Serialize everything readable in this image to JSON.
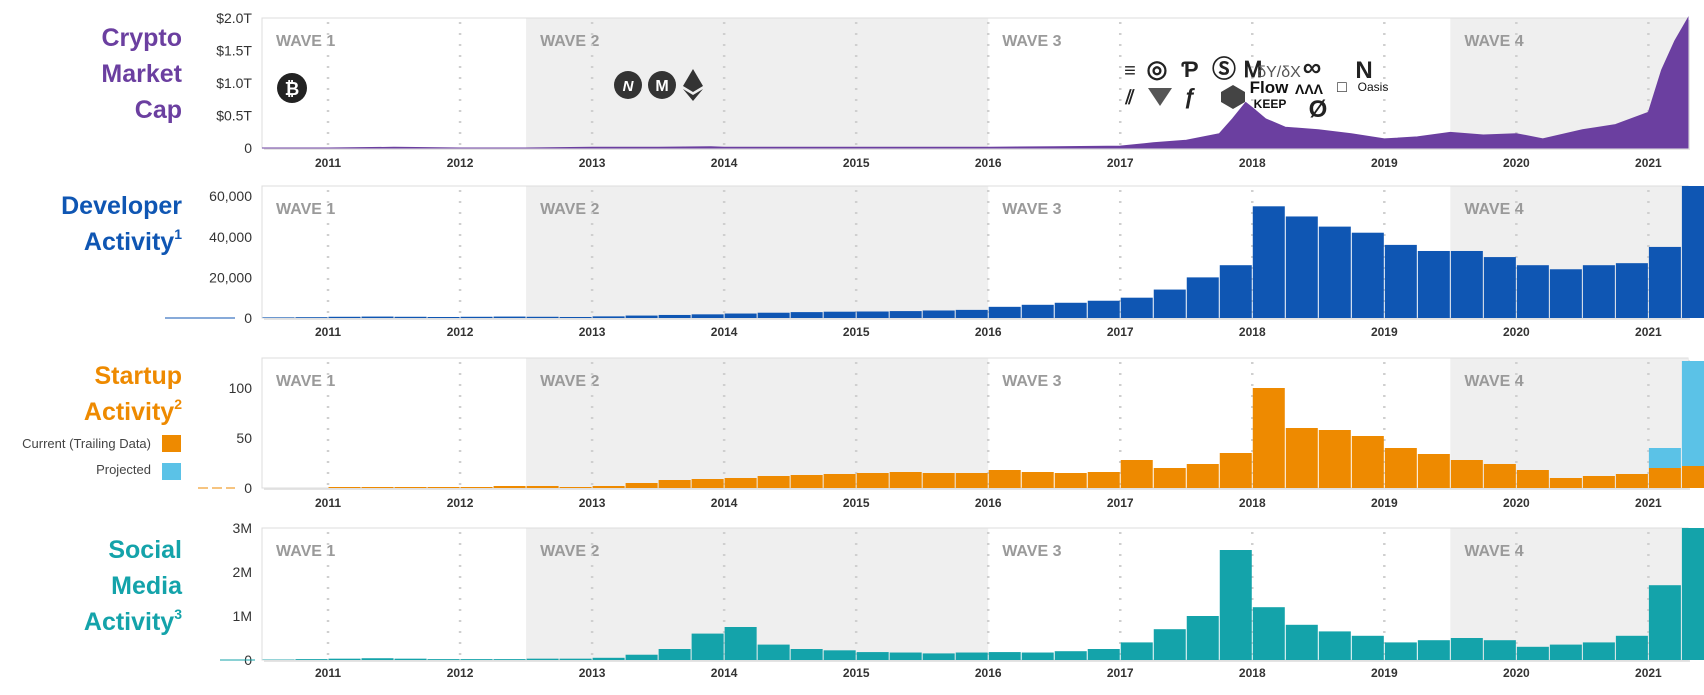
{
  "panels": [
    {
      "title_lines": [
        "Crypto",
        "Market",
        "Cap"
      ],
      "title_sup": "",
      "title_color": "#6b3fa0"
    },
    {
      "title_lines": [
        "Developer",
        "Activity"
      ],
      "title_sup": "1",
      "title_color": "#0f56b3"
    },
    {
      "title_lines": [
        "Startup",
        "Activity"
      ],
      "title_sup": "2",
      "title_color": "#ee8a00"
    },
    {
      "title_lines": [
        "Social",
        "Media",
        "Activity"
      ],
      "title_sup": "3",
      "title_color": "#14a3aa"
    }
  ],
  "legend": {
    "current_label": "Current (Trailing Data)",
    "current_color": "#ee8a00",
    "projected_label": "Projected",
    "projected_color": "#5bc2e7"
  },
  "waves": [
    {
      "label": "WAVE 1",
      "start": 2010.5,
      "end": 2012.5,
      "shaded": false
    },
    {
      "label": "WAVE 2",
      "start": 2012.5,
      "end": 2016.0,
      "shaded": true
    },
    {
      "label": "WAVE 3",
      "start": 2016.0,
      "end": 2019.5,
      "shaded": false
    },
    {
      "label": "WAVE 4",
      "start": 2019.5,
      "end": 2021.3,
      "shaded": true
    }
  ],
  "logos": {
    "wave1": [
      "bitcoin-logo"
    ],
    "wave2": [
      "nem-logo",
      "monero-logo",
      "ethereum-logo"
    ],
    "wave3": [
      "Flow",
      "KEEP",
      "Oasis",
      "δY/δX"
    ]
  },
  "chart_data": [
    {
      "type": "area",
      "title": "Crypto Market Cap",
      "color": "#6b3fa0",
      "x_ticks": [
        "2011",
        "2012",
        "2013",
        "2014",
        "2015",
        "2016",
        "2017",
        "2018",
        "2019",
        "2020",
        "2021"
      ],
      "y_ticks": [
        "0",
        "$0.5T",
        "$1.0T",
        "$1.5T",
        "$2.0T"
      ],
      "ylim": [
        0,
        2.0
      ],
      "unit": "trillions USD",
      "x": [
        2010.5,
        2011,
        2011.5,
        2012,
        2012.5,
        2013,
        2013.5,
        2013.9,
        2014,
        2014.5,
        2015,
        2015.5,
        2016,
        2016.5,
        2017,
        2017.25,
        2017.5,
        2017.75,
        2017.85,
        2017.95,
        2018.0,
        2018.1,
        2018.25,
        2018.5,
        2018.75,
        2019,
        2019.25,
        2019.5,
        2019.75,
        2020,
        2020.2,
        2020.5,
        2020.75,
        2021,
        2021.1,
        2021.2,
        2021.3
      ],
      "y": [
        0,
        0,
        0.01,
        0,
        0,
        0.01,
        0.01,
        0.02,
        0.01,
        0.01,
        0.01,
        0.01,
        0.01,
        0.02,
        0.03,
        0.08,
        0.12,
        0.22,
        0.45,
        0.7,
        0.62,
        0.45,
        0.32,
        0.28,
        0.22,
        0.14,
        0.17,
        0.24,
        0.2,
        0.22,
        0.14,
        0.28,
        0.36,
        0.55,
        1.2,
        1.65,
        2.0
      ]
    },
    {
      "type": "bar",
      "title": "Developer Activity",
      "color": "#0f56b3",
      "x_ticks": [
        "2011",
        "2012",
        "2013",
        "2014",
        "2015",
        "2016",
        "2017",
        "2018",
        "2019",
        "2020",
        "2021"
      ],
      "y_ticks": [
        "0",
        "20,000",
        "40,000",
        "60,000"
      ],
      "ylim": [
        0,
        65000
      ],
      "periods": [
        "2010-Q3",
        "2010-Q4",
        "2011-Q1",
        "2011-Q2",
        "2011-Q3",
        "2011-Q4",
        "2012-Q1",
        "2012-Q2",
        "2012-Q3",
        "2012-Q4",
        "2013-Q1",
        "2013-Q2",
        "2013-Q3",
        "2013-Q4",
        "2014-Q1",
        "2014-Q2",
        "2014-Q3",
        "2014-Q4",
        "2015-Q1",
        "2015-Q2",
        "2015-Q3",
        "2015-Q4",
        "2016-Q1",
        "2016-Q2",
        "2016-Q3",
        "2016-Q4",
        "2017-Q1",
        "2017-Q2",
        "2017-Q3",
        "2017-Q4",
        "2018-Q1",
        "2018-Q2",
        "2018-Q3",
        "2018-Q4",
        "2019-Q1",
        "2019-Q2",
        "2019-Q3",
        "2019-Q4",
        "2020-Q1",
        "2020-Q2",
        "2020-Q3",
        "2020-Q4",
        "2021-Q1",
        "2021-Q2"
      ],
      "values": [
        300,
        400,
        600,
        700,
        600,
        500,
        600,
        700,
        600,
        500,
        800,
        1200,
        1500,
        1800,
        2200,
        2600,
        2900,
        3100,
        3200,
        3400,
        3700,
        4000,
        5500,
        6500,
        7500,
        8500,
        10000,
        14000,
        20000,
        26000,
        55000,
        50000,
        45000,
        42000,
        36000,
        33000,
        33000,
        30000,
        26000,
        24000,
        26000,
        27000,
        35000,
        65000
      ]
    },
    {
      "type": "bar",
      "title": "Startup Activity",
      "color": "#ee8a00",
      "projected_color": "#5bc2e7",
      "x_ticks": [
        "2011",
        "2012",
        "2013",
        "2014",
        "2015",
        "2016",
        "2017",
        "2018",
        "2019",
        "2020",
        "2021"
      ],
      "y_ticks": [
        "0",
        "50",
        "100"
      ],
      "ylim": [
        0,
        130
      ],
      "periods": [
        "2010-Q3",
        "2010-Q4",
        "2011-Q1",
        "2011-Q2",
        "2011-Q3",
        "2011-Q4",
        "2012-Q1",
        "2012-Q2",
        "2012-Q3",
        "2012-Q4",
        "2013-Q1",
        "2013-Q2",
        "2013-Q3",
        "2013-Q4",
        "2014-Q1",
        "2014-Q2",
        "2014-Q3",
        "2014-Q4",
        "2015-Q1",
        "2015-Q2",
        "2015-Q3",
        "2015-Q4",
        "2016-Q1",
        "2016-Q2",
        "2016-Q3",
        "2016-Q4",
        "2017-Q1",
        "2017-Q2",
        "2017-Q3",
        "2017-Q4",
        "2018-Q1",
        "2018-Q2",
        "2018-Q3",
        "2018-Q4",
        "2019-Q1",
        "2019-Q2",
        "2019-Q3",
        "2019-Q4",
        "2020-Q1",
        "2020-Q2",
        "2020-Q3",
        "2020-Q4",
        "2021-Q1",
        "2021-Q2"
      ],
      "series": [
        {
          "name": "Current (Trailing Data)",
          "values": [
            0,
            0,
            1,
            1,
            1,
            1,
            1,
            2,
            2,
            1,
            2,
            5,
            8,
            9,
            10,
            12,
            13,
            14,
            15,
            16,
            15,
            15,
            18,
            16,
            15,
            16,
            28,
            20,
            24,
            35,
            100,
            60,
            58,
            52,
            40,
            34,
            28,
            24,
            18,
            10,
            12,
            14,
            20,
            22
          ]
        },
        {
          "name": "Projected",
          "values": [
            0,
            0,
            0,
            0,
            0,
            0,
            0,
            0,
            0,
            0,
            0,
            0,
            0,
            0,
            0,
            0,
            0,
            0,
            0,
            0,
            0,
            0,
            0,
            0,
            0,
            0,
            0,
            0,
            0,
            0,
            0,
            0,
            0,
            0,
            0,
            0,
            0,
            0,
            0,
            0,
            0,
            0,
            20,
            105
          ]
        }
      ]
    },
    {
      "type": "bar",
      "title": "Social Media Activity",
      "color": "#14a3aa",
      "x_ticks": [
        "2011",
        "2012",
        "2013",
        "2014",
        "2015",
        "2016",
        "2017",
        "2018",
        "2019",
        "2020",
        "2021"
      ],
      "y_ticks": [
        "0",
        "1M",
        "2M",
        "3M"
      ],
      "ylim": [
        0,
        3000000
      ],
      "periods": [
        "2010-Q3",
        "2010-Q4",
        "2011-Q1",
        "2011-Q2",
        "2011-Q3",
        "2011-Q4",
        "2012-Q1",
        "2012-Q2",
        "2012-Q3",
        "2012-Q4",
        "2013-Q1",
        "2013-Q2",
        "2013-Q3",
        "2013-Q4",
        "2014-Q1",
        "2014-Q2",
        "2014-Q3",
        "2014-Q4",
        "2015-Q1",
        "2015-Q2",
        "2015-Q3",
        "2015-Q4",
        "2016-Q1",
        "2016-Q2",
        "2016-Q3",
        "2016-Q4",
        "2017-Q1",
        "2017-Q2",
        "2017-Q3",
        "2017-Q4",
        "2018-Q1",
        "2018-Q2",
        "2018-Q3",
        "2018-Q4",
        "2019-Q1",
        "2019-Q2",
        "2019-Q3",
        "2019-Q4",
        "2020-Q1",
        "2020-Q2",
        "2020-Q3",
        "2020-Q4",
        "2021-Q1",
        "2021-Q2"
      ],
      "values": [
        10000,
        20000,
        30000,
        40000,
        30000,
        20000,
        20000,
        20000,
        30000,
        30000,
        50000,
        120000,
        250000,
        600000,
        750000,
        350000,
        250000,
        220000,
        180000,
        170000,
        150000,
        170000,
        180000,
        170000,
        200000,
        250000,
        400000,
        700000,
        1000000,
        2500000,
        1200000,
        800000,
        650000,
        550000,
        400000,
        450000,
        500000,
        450000,
        300000,
        350000,
        400000,
        550000,
        1700000,
        3000000
      ]
    }
  ]
}
